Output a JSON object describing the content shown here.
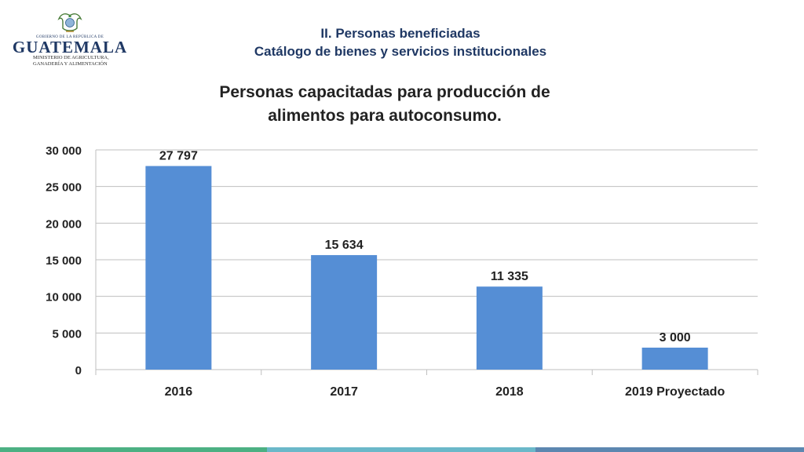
{
  "logo": {
    "government_line": "GOBIERNO DE LA REPÚBLICA DE",
    "country": "GUATEMALA",
    "ministry_line1": "MINISTERIO DE AGRICULTURA,",
    "ministry_line2": "GANADERÍA Y ALIMENTACIÓN"
  },
  "header": {
    "line1": "II. Personas beneficiadas",
    "line2": "Catálogo de bienes y servicios institucionales"
  },
  "chart_data": {
    "type": "bar",
    "title_line1": "Personas capacitadas para producción de",
    "title_line2": "alimentos para autoconsumo.",
    "categories": [
      "2016",
      "2017",
      "2018",
      "2019 Proyectado"
    ],
    "values": [
      27797,
      15634,
      11335,
      3000
    ],
    "value_labels": [
      "27 797",
      "15 634",
      "11 335",
      "3 000"
    ],
    "ylim": [
      0,
      30000
    ],
    "yticks": [
      0,
      5000,
      10000,
      15000,
      20000,
      25000,
      30000
    ],
    "ytick_labels": [
      "0",
      "5 000",
      "10 000",
      "15 000",
      "20 000",
      "25 000",
      "30 000"
    ],
    "grid": true,
    "legend": "none",
    "bar_color": "#558ed5"
  },
  "colors": {
    "header_text": "#1f3864",
    "bottom_stripe": [
      "#4cb083",
      "#6bb8c9",
      "#5c87b0"
    ]
  }
}
